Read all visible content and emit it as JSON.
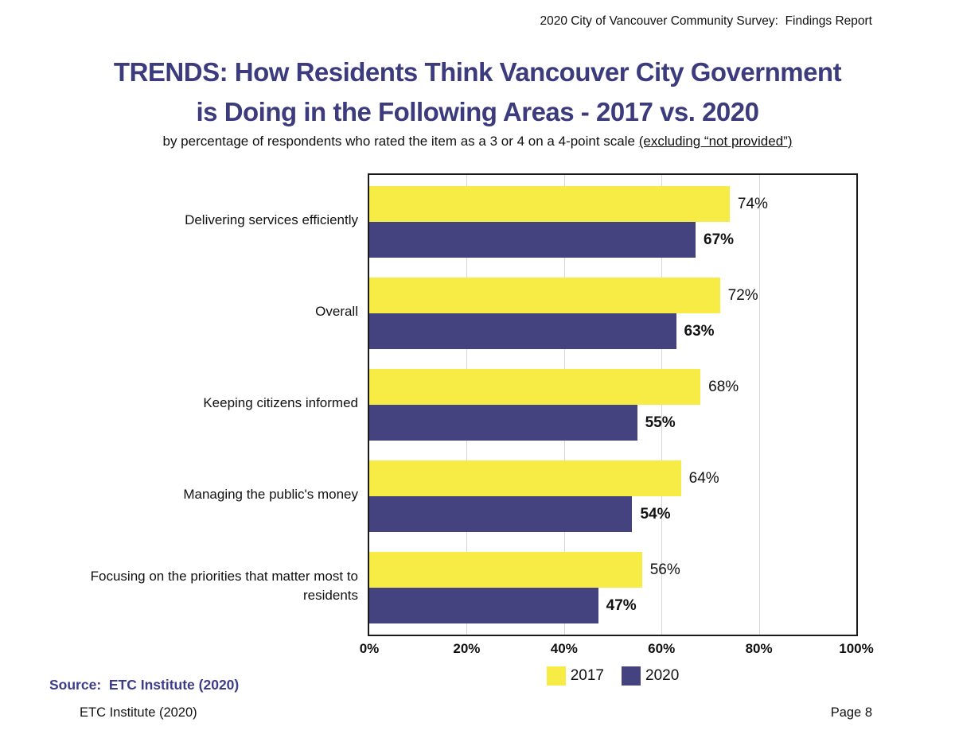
{
  "page": {
    "header": "2020 City of Vancouver Community Survey:  Findings Report",
    "title_line1": "TRENDS: How Residents Think Vancouver City Government",
    "title_line2": "is Doing in the Following Areas - 2017 vs. 2020",
    "subtitle_prefix": "by percentage of respondents who rated the item as a 3 or 4 on a 4-point scale ",
    "subtitle_underlined": "(excluding “not provided”)",
    "source_label": "Source:  ETC Institute (2020)",
    "footer_left": "ETC Institute (2020)",
    "footer_right": "Page 8"
  },
  "colors": {
    "title": "#3B3B7D",
    "source": "#3C3C8C",
    "bar_2017": "#F7EB45",
    "bar_2020": "#45437F",
    "gridline": "#D6D6D6",
    "plot_border": "#1A1A1A"
  },
  "chart_data": {
    "type": "bar",
    "orientation": "horizontal",
    "title": "TRENDS: How Residents Think Vancouver City Government is Doing in the Following Areas - 2017 vs. 2020",
    "subtitle": "by percentage of respondents who rated the item as a 3 or 4 on a 4-point scale (excluding “not provided”)",
    "categories": [
      "Delivering services efficiently",
      "Overall",
      "Keeping citizens informed",
      "Managing the public's money",
      "Focusing on the priorities that matter most to residents"
    ],
    "series": [
      {
        "name": "2017",
        "color_key": "bar_2017",
        "values": [
          74,
          72,
          68,
          64,
          56
        ]
      },
      {
        "name": "2020",
        "color_key": "bar_2020",
        "values": [
          67,
          63,
          55,
          54,
          47
        ]
      }
    ],
    "value_suffix": "%",
    "xlim": [
      0,
      100
    ],
    "x_ticks": [
      0,
      20,
      40,
      60,
      80,
      100
    ],
    "x_tick_labels": [
      "0%",
      "20%",
      "40%",
      "60%",
      "80%",
      "100%"
    ],
    "grid": "vertical gridlines every 20%",
    "legend_position": "bottom-center"
  }
}
